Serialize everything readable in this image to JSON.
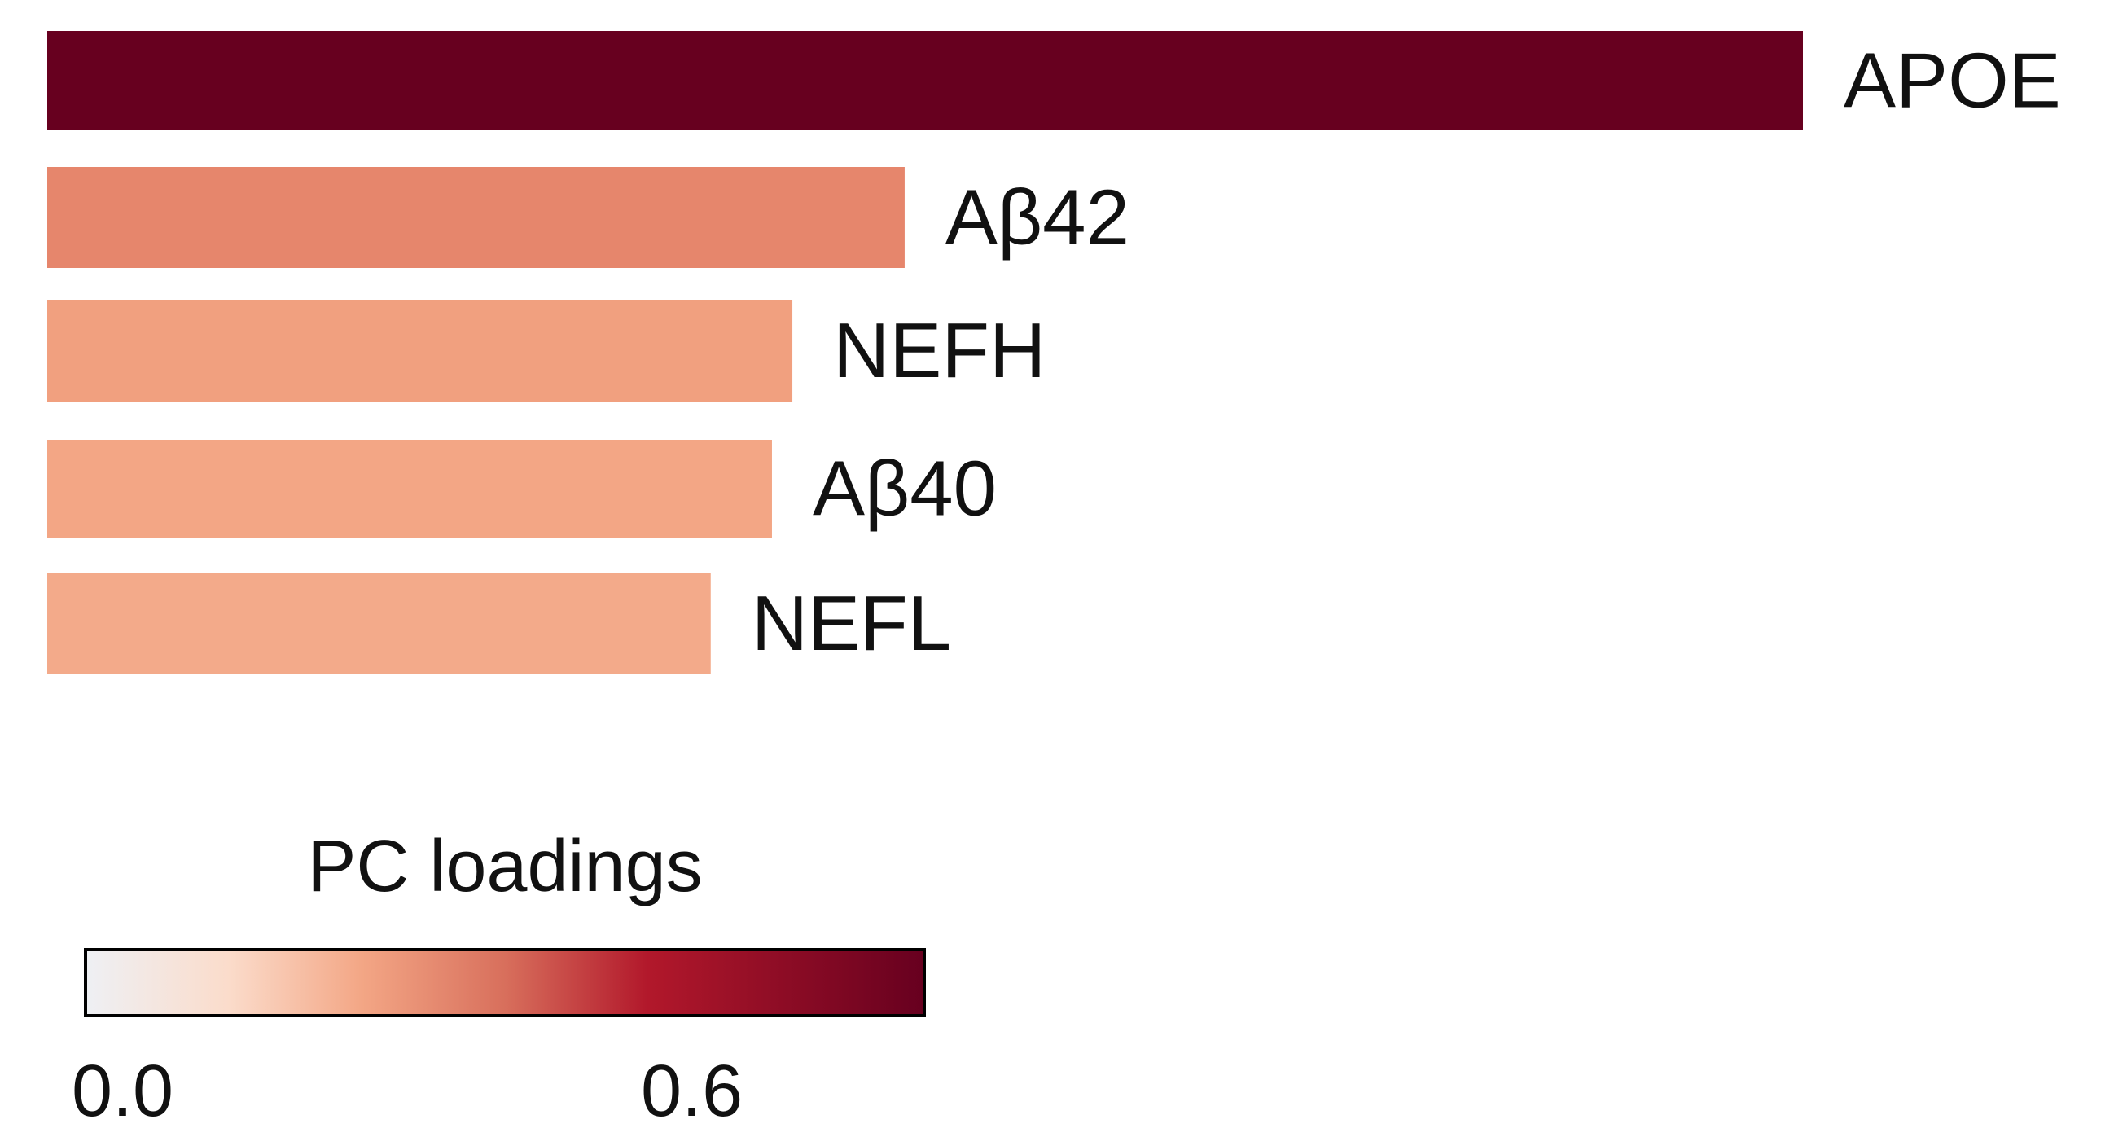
{
  "chart_data": {
    "type": "bar",
    "orientation": "horizontal",
    "categories": [
      "APOE",
      "Aβ42",
      "NEFH",
      "Aβ40",
      "NEFL"
    ],
    "values": [
      0.86,
      0.42,
      0.365,
      0.355,
      0.325
    ],
    "bar_colors": [
      "#67001f",
      "#e6866c",
      "#f1a07f",
      "#f3a685",
      "#f3aa8a"
    ],
    "grid": false,
    "colorbar": {
      "title": "PC loadings",
      "tick_labels": [
        "0.0",
        "0.6"
      ],
      "tick_values": [
        0.0,
        0.6
      ],
      "range": [
        0.0,
        0.83
      ],
      "colormap": "RdBu_r (white to dark red)",
      "stops": [
        {
          "value": 0.0,
          "color": "#eef0f4"
        },
        {
          "value": 0.17,
          "color": "#fbdccb"
        },
        {
          "value": 0.33,
          "color": "#f3a685"
        },
        {
          "value": 0.5,
          "color": "#d86f5c"
        },
        {
          "value": 0.67,
          "color": "#b2182b"
        },
        {
          "value": 1.0,
          "color": "#67001f"
        }
      ]
    }
  }
}
